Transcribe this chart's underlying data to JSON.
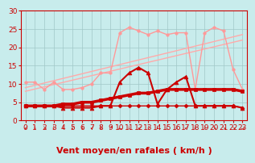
{
  "title": "",
  "xlabel": "Vent moyen/en rafales ( km/h )",
  "bg_color": "#c8ecec",
  "grid_color": "#a0c8c8",
  "xlim": [
    -0.5,
    23.5
  ],
  "ylim": [
    0,
    30
  ],
  "yticks": [
    0,
    5,
    10,
    15,
    20,
    25,
    30
  ],
  "xticks": [
    0,
    1,
    2,
    3,
    4,
    5,
    6,
    7,
    8,
    9,
    10,
    11,
    12,
    13,
    14,
    15,
    16,
    17,
    18,
    19,
    20,
    21,
    22,
    23
  ],
  "series": [
    {
      "comment": "Two light-pink diagonal straight lines (no markers)",
      "x": [
        0,
        23
      ],
      "y": [
        9.0,
        23.5
      ],
      "color": "#ffaaaa",
      "lw": 1.0,
      "marker": null,
      "ms": 0,
      "zorder": 2
    },
    {
      "comment": "Second light-pink diagonal straight line",
      "x": [
        0,
        23
      ],
      "y": [
        8.0,
        22.0
      ],
      "color": "#ffaaaa",
      "lw": 1.0,
      "marker": null,
      "ms": 0,
      "zorder": 2
    },
    {
      "comment": "Light pink jagged line with small dot markers - upper volatile",
      "x": [
        0,
        1,
        2,
        3,
        4,
        5,
        6,
        7,
        8,
        9,
        10,
        11,
        12,
        13,
        14,
        15,
        16,
        17,
        18,
        19,
        20,
        21,
        22,
        23
      ],
      "y": [
        10.5,
        10.5,
        8.5,
        10.5,
        8.5,
        8.5,
        9.0,
        10.0,
        13.0,
        13.0,
        24.0,
        25.5,
        24.5,
        23.5,
        24.5,
        23.5,
        24.0,
        24.0,
        8.5,
        24.0,
        25.5,
        24.5,
        14.0,
        8.5
      ],
      "color": "#ff9999",
      "lw": 1.0,
      "marker": "o",
      "ms": 2.5,
      "zorder": 3
    },
    {
      "comment": "Medium red thick line (average wind) - slowly rising",
      "x": [
        0,
        1,
        2,
        3,
        4,
        5,
        6,
        7,
        8,
        9,
        10,
        11,
        12,
        13,
        14,
        15,
        16,
        17,
        18,
        19,
        20,
        21,
        22,
        23
      ],
      "y": [
        4.0,
        4.0,
        4.0,
        4.0,
        4.5,
        4.5,
        5.0,
        5.0,
        5.5,
        6.0,
        6.5,
        7.0,
        7.5,
        7.5,
        8.0,
        8.5,
        8.5,
        8.5,
        8.5,
        8.5,
        8.5,
        8.5,
        8.5,
        8.0
      ],
      "color": "#cc0000",
      "lw": 2.5,
      "marker": "s",
      "ms": 2.5,
      "zorder": 4
    },
    {
      "comment": "Dark red volatile line with triangle markers",
      "x": [
        0,
        1,
        2,
        3,
        4,
        5,
        6,
        7,
        8,
        9,
        10,
        11,
        12,
        13,
        14,
        15,
        16,
        17,
        18,
        19,
        20,
        21,
        22,
        23
      ],
      "y": [
        4.0,
        4.0,
        4.0,
        4.0,
        3.5,
        3.5,
        3.5,
        3.5,
        4.0,
        4.0,
        10.5,
        13.0,
        14.5,
        13.0,
        4.5,
        8.5,
        10.5,
        12.0,
        4.0,
        4.0,
        4.0,
        4.0,
        4.0,
        3.5
      ],
      "color": "#cc0000",
      "lw": 1.5,
      "marker": "^",
      "ms": 3.5,
      "zorder": 5
    },
    {
      "comment": "Flat red line with diamond markers at bottom",
      "x": [
        0,
        1,
        2,
        3,
        4,
        5,
        6,
        7,
        8,
        9,
        10,
        11,
        12,
        13,
        14,
        15,
        16,
        17,
        18,
        19,
        20,
        21,
        22,
        23
      ],
      "y": [
        4.0,
        4.0,
        4.0,
        4.0,
        4.0,
        4.0,
        4.0,
        4.0,
        4.0,
        4.0,
        4.0,
        4.0,
        4.0,
        4.0,
        4.0,
        4.0,
        4.0,
        4.0,
        4.0,
        4.0,
        4.0,
        4.0,
        4.0,
        3.5
      ],
      "color": "#cc0000",
      "lw": 1.0,
      "marker": "D",
      "ms": 2.5,
      "zorder": 6
    }
  ],
  "wind_symbols": [
    "↙",
    "↓",
    "↘",
    "↓",
    "↓",
    "↙",
    "↓",
    "↙",
    "↓",
    "↗",
    "←",
    "↓",
    "↙",
    "↓",
    "↓",
    "↓",
    "↓",
    "↙",
    "↓",
    "↓",
    "↘",
    "↘",
    "↘",
    "→"
  ],
  "xlabel_color": "#cc0000",
  "xlabel_fontsize": 8,
  "tick_color": "#cc0000",
  "tick_fontsize": 6.5
}
